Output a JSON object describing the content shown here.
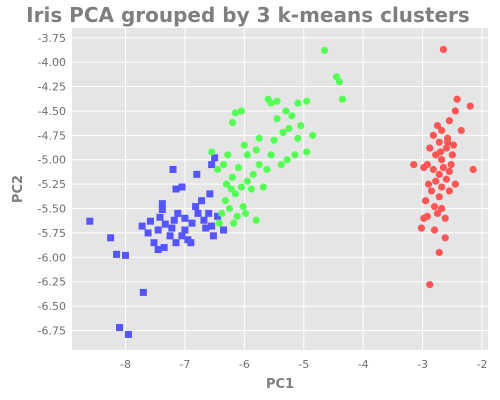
{
  "chart_data": {
    "type": "scatter",
    "title": "Iris PCA grouped by 3 k-means clusters",
    "xlabel": "PC1",
    "ylabel": "PC2",
    "xlim": [
      -8.9,
      -1.9
    ],
    "ylim": [
      -6.95,
      -3.65
    ],
    "x_ticks": [
      -8,
      -7,
      -6,
      -5,
      -4,
      -3,
      -2
    ],
    "y_ticks": [
      -3.75,
      -4.0,
      -4.25,
      -4.5,
      -4.75,
      -5.0,
      -5.25,
      -5.5,
      -5.75,
      -6.0,
      -6.25,
      -6.5,
      -6.75
    ],
    "x_tick_labels": [
      "-8",
      "-7",
      "-6",
      "-5",
      "-4",
      "-3",
      "-2"
    ],
    "y_tick_labels": [
      "-3.75",
      "-4.00",
      "-4.25",
      "-4.50",
      "-4.75",
      "-5.00",
      "-5.25",
      "-5.50",
      "-5.75",
      "-6.00",
      "-6.25",
      "-6.50",
      "-6.75"
    ],
    "grid": true,
    "background": "#e5e5e5",
    "grid_color": "#ffffff",
    "series": [
      {
        "marker": "square",
        "color": "#5555ff",
        "points": [
          [
            -8.6,
            -5.63
          ],
          [
            -8.25,
            -5.8
          ],
          [
            -8.15,
            -5.97
          ],
          [
            -8.0,
            -5.98
          ],
          [
            -8.1,
            -6.72
          ],
          [
            -7.95,
            -6.79
          ],
          [
            -7.7,
            -6.36
          ],
          [
            -7.72,
            -5.68
          ],
          [
            -7.62,
            -5.75
          ],
          [
            -7.58,
            -5.63
          ],
          [
            -7.45,
            -5.72
          ],
          [
            -7.52,
            -5.85
          ],
          [
            -7.45,
            -5.92
          ],
          [
            -7.35,
            -5.9
          ],
          [
            -7.33,
            -5.66
          ],
          [
            -7.42,
            -5.59
          ],
          [
            -7.38,
            -5.51
          ],
          [
            -7.38,
            -5.45
          ],
          [
            -7.25,
            -5.78
          ],
          [
            -7.22,
            -5.7
          ],
          [
            -7.18,
            -5.62
          ],
          [
            -7.15,
            -5.85
          ],
          [
            -7.12,
            -5.55
          ],
          [
            -7.05,
            -5.78
          ],
          [
            -7.0,
            -5.6
          ],
          [
            -7.0,
            -5.72
          ],
          [
            -6.95,
            -5.82
          ],
          [
            -6.88,
            -5.65
          ],
          [
            -6.82,
            -5.48
          ],
          [
            -6.78,
            -5.55
          ],
          [
            -6.72,
            -5.42
          ],
          [
            -6.68,
            -5.62
          ],
          [
            -6.65,
            -5.7
          ],
          [
            -6.6,
            -5.55
          ],
          [
            -6.55,
            -5.68
          ],
          [
            -6.52,
            -5.78
          ],
          [
            -6.58,
            -5.35
          ],
          [
            -6.55,
            -5.05
          ],
          [
            -6.5,
            -4.98
          ],
          [
            -6.35,
            -5.72
          ],
          [
            -6.8,
            -5.15
          ],
          [
            -7.15,
            -5.3
          ],
          [
            -7.05,
            -5.28
          ],
          [
            -7.2,
            -5.1
          ],
          [
            -6.9,
            -5.85
          ],
          [
            -6.45,
            -5.58
          ]
        ]
      },
      {
        "marker": "circle",
        "color": "#55ff55",
        "points": [
          [
            -4.65,
            -3.88
          ],
          [
            -4.45,
            -4.15
          ],
          [
            -4.4,
            -4.2
          ],
          [
            -4.35,
            -4.38
          ],
          [
            -4.95,
            -4.4
          ],
          [
            -5.1,
            -4.42
          ],
          [
            -5.3,
            -4.5
          ],
          [
            -5.45,
            -4.4
          ],
          [
            -5.6,
            -4.38
          ],
          [
            -5.55,
            -4.42
          ],
          [
            -5.2,
            -4.55
          ],
          [
            -5.05,
            -4.65
          ],
          [
            -5.25,
            -4.68
          ],
          [
            -5.35,
            -4.72
          ],
          [
            -5.45,
            -4.58
          ],
          [
            -5.1,
            -4.78
          ],
          [
            -4.85,
            -4.75
          ],
          [
            -4.95,
            -4.92
          ],
          [
            -5.15,
            -4.95
          ],
          [
            -5.28,
            -5.0
          ],
          [
            -5.38,
            -5.05
          ],
          [
            -5.5,
            -4.8
          ],
          [
            -5.55,
            -4.95
          ],
          [
            -5.62,
            -5.1
          ],
          [
            -5.75,
            -4.78
          ],
          [
            -5.8,
            -4.9
          ],
          [
            -5.75,
            -5.05
          ],
          [
            -5.85,
            -5.15
          ],
          [
            -6.0,
            -4.85
          ],
          [
            -6.05,
            -4.5
          ],
          [
            -6.15,
            -4.52
          ],
          [
            -6.2,
            -4.62
          ],
          [
            -5.95,
            -4.95
          ],
          [
            -6.1,
            -5.08
          ],
          [
            -6.2,
            -5.18
          ],
          [
            -6.3,
            -5.25
          ],
          [
            -6.35,
            -5.05
          ],
          [
            -6.45,
            -5.1
          ],
          [
            -6.55,
            -4.92
          ],
          [
            -6.28,
            -4.95
          ],
          [
            -6.22,
            -5.3
          ],
          [
            -6.15,
            -5.35
          ],
          [
            -6.05,
            -5.28
          ],
          [
            -5.95,
            -5.22
          ],
          [
            -5.88,
            -5.3
          ],
          [
            -5.68,
            -5.28
          ],
          [
            -6.32,
            -5.42
          ],
          [
            -6.25,
            -5.5
          ],
          [
            -6.12,
            -5.58
          ],
          [
            -6.02,
            -5.48
          ],
          [
            -5.98,
            -5.55
          ],
          [
            -5.8,
            -5.62
          ],
          [
            -6.38,
            -5.55
          ],
          [
            -6.18,
            -5.65
          ],
          [
            -6.42,
            -5.65
          ]
        ]
      },
      {
        "marker": "circle",
        "color": "#ff5555",
        "points": [
          [
            -2.65,
            -3.87
          ],
          [
            -2.42,
            -4.38
          ],
          [
            -2.45,
            -4.5
          ],
          [
            -2.2,
            -4.45
          ],
          [
            -2.55,
            -4.6
          ],
          [
            -2.68,
            -4.7
          ],
          [
            -2.58,
            -4.78
          ],
          [
            -2.35,
            -4.7
          ],
          [
            -2.75,
            -4.65
          ],
          [
            -2.82,
            -4.75
          ],
          [
            -2.72,
            -4.82
          ],
          [
            -2.6,
            -4.88
          ],
          [
            -2.48,
            -4.85
          ],
          [
            -2.88,
            -4.88
          ],
          [
            -2.78,
            -4.95
          ],
          [
            -2.68,
            -5.0
          ],
          [
            -2.5,
            -4.95
          ],
          [
            -2.65,
            -5.08
          ],
          [
            -2.55,
            -5.12
          ],
          [
            -2.92,
            -5.05
          ],
          [
            -2.82,
            -5.1
          ],
          [
            -2.72,
            -5.15
          ],
          [
            -2.6,
            -5.2
          ],
          [
            -2.45,
            -5.25
          ],
          [
            -2.15,
            -5.1
          ],
          [
            -2.55,
            -5.32
          ],
          [
            -2.68,
            -5.28
          ],
          [
            -2.78,
            -5.22
          ],
          [
            -2.9,
            -5.25
          ],
          [
            -2.85,
            -5.32
          ],
          [
            -2.72,
            -5.38
          ],
          [
            -2.95,
            -5.42
          ],
          [
            -2.8,
            -5.48
          ],
          [
            -2.75,
            -5.55
          ],
          [
            -2.68,
            -5.5
          ],
          [
            -2.92,
            -5.58
          ],
          [
            -2.62,
            -5.6
          ],
          [
            -2.98,
            -5.6
          ],
          [
            -3.02,
            -5.7
          ],
          [
            -2.8,
            -5.72
          ],
          [
            -2.62,
            -5.8
          ],
          [
            -2.72,
            -5.95
          ],
          [
            -2.88,
            -6.28
          ],
          [
            -2.98,
            -5.08
          ],
          [
            -3.15,
            -5.05
          ],
          [
            -2.58,
            -4.82
          ],
          [
            -2.7,
            -4.92
          ],
          [
            -2.52,
            -5.05
          ]
        ]
      }
    ]
  }
}
